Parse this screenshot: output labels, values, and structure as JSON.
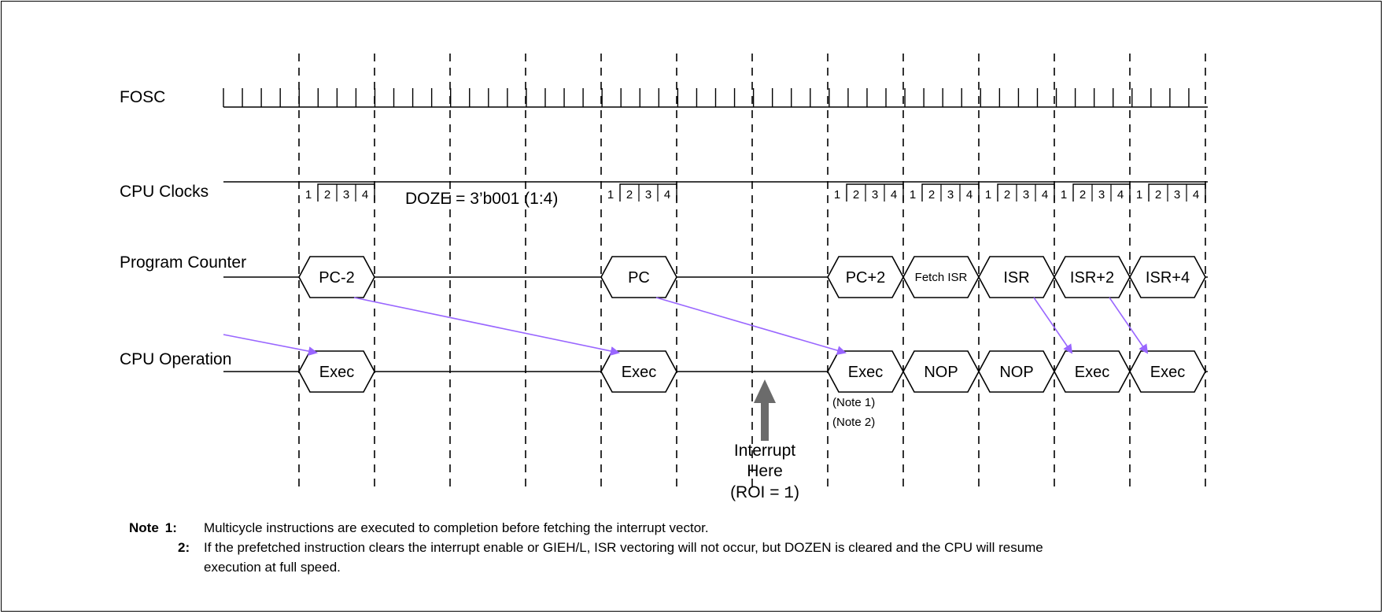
{
  "signals": {
    "fosc": "FOSC",
    "cpu_clocks": "CPU Clocks",
    "program_counter": "Program Counter",
    "cpu_operation": "CPU Operation"
  },
  "doze_label": "DOZE = 3’b001 (1:4)",
  "clock_digits": [
    "1",
    "2",
    "3",
    "4"
  ],
  "pc_cells": [
    "PC-2",
    "PC",
    "PC+2",
    "Fetch ISR",
    "ISR",
    "ISR+2",
    "ISR+4"
  ],
  "op_cells": [
    "Exec",
    "Exec",
    "Exec",
    "NOP",
    "NOP",
    "Exec",
    "Exec"
  ],
  "exec_notes": [
    "(Note 1)",
    "(Note 2)"
  ],
  "interrupt": {
    "line1": "Interrupt",
    "line2": "Here",
    "line3_prefix": "(ROI = ",
    "line3_value": "1",
    "line3_suffix": ")"
  },
  "notes": {
    "heading": "Note",
    "n1_num": "1:",
    "n1_text": "Multicycle instructions are executed to completion before fetching the interrupt vector.",
    "n2_num": "2:",
    "n2_line1": "If the prefetched instruction clears the interrupt enable or GIEH/L, ISR vectoring will not occur, but DOZEN is cleared and the CPU will resume",
    "n2_line2": "execution at full speed."
  },
  "colors": {
    "arrow": "#9966ff",
    "interrupt_arrow": "#6b6b6b",
    "line": "#000000"
  }
}
